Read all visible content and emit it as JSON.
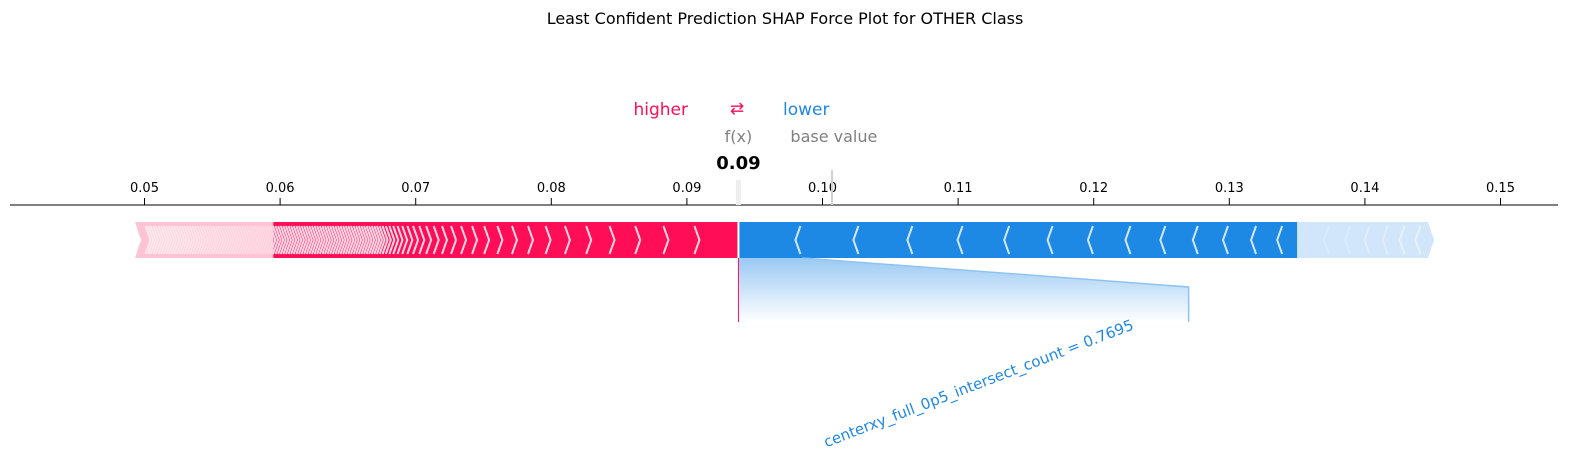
{
  "chart_data": {
    "type": "shap-force",
    "title": "Least Confident Prediction SHAP Force Plot for OTHER Class",
    "xlim": [
      0.04,
      0.154
    ],
    "ticks": [
      0.05,
      0.06,
      0.07,
      0.08,
      0.09,
      0.1,
      0.11,
      0.12,
      0.13,
      0.14,
      0.15
    ],
    "tick_labels": [
      "0.05",
      "0.06",
      "0.07",
      "0.08",
      "0.09",
      "0.10",
      "0.11",
      "0.12",
      "0.13",
      "0.14",
      "0.15"
    ],
    "fx": 0.0938,
    "fx_label": "f(x)",
    "fx_value_label": "0.09",
    "base_value": 0.1007,
    "base_value_label": "base value",
    "legend": {
      "higher": "higher",
      "lower": "lower",
      "arrows": "⇄"
    },
    "positive_range": [
      0.0493,
      0.0938
    ],
    "negative_range": [
      0.0938,
      0.1451
    ],
    "positive_fade_start": 0.0595,
    "negative_fade_start": 0.135,
    "features": [
      {
        "label": "centerxy_full_0p5_intersect_count = 0.7695",
        "effect": "lower",
        "start": 0.0938,
        "end": 0.0985,
        "label_anchor": 0.127
      }
    ],
    "colors": {
      "positive": "#ff0d57",
      "negative": "#1e88e5",
      "positive_light": "#ffc3d5",
      "negative_light": "#d1e6fa",
      "separator": "#ffffff"
    }
  }
}
